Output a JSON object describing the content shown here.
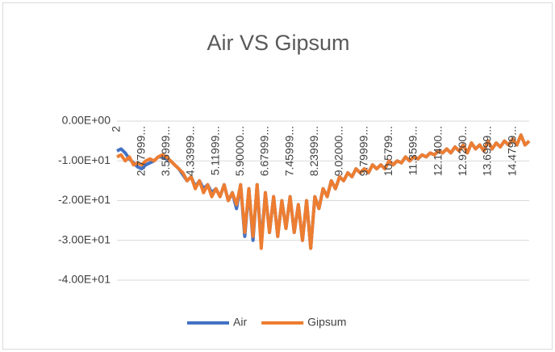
{
  "chart_data": {
    "type": "line",
    "title": "Air VS Gipsum",
    "categories": [
      "2",
      null,
      null,
      null,
      null,
      null,
      "2.77999...",
      null,
      null,
      null,
      null,
      null,
      "3.55999...",
      null,
      null,
      null,
      null,
      null,
      "4.33999...",
      null,
      null,
      null,
      null,
      null,
      "5.11999...",
      null,
      null,
      null,
      null,
      null,
      "5.90000...",
      null,
      null,
      null,
      null,
      null,
      "6.67999...",
      null,
      null,
      null,
      null,
      null,
      "7.45999...",
      null,
      null,
      null,
      null,
      null,
      "8.23999...",
      null,
      null,
      null,
      null,
      null,
      "9.02000...",
      null,
      null,
      null,
      null,
      null,
      "9.79999...",
      null,
      null,
      null,
      null,
      null,
      "10.5799...",
      null,
      null,
      null,
      null,
      null,
      "11.3599...",
      null,
      null,
      null,
      null,
      null,
      "12.1400...",
      null,
      null,
      null,
      null,
      null,
      "12.9200...",
      null,
      null,
      null,
      null,
      null,
      "13.6999...",
      null,
      null,
      null,
      null,
      null,
      "14.4799...",
      null,
      null,
      null,
      null
    ],
    "series": [
      {
        "name": "Air",
        "color": "#4472c4",
        "values": [
          -7.5,
          -7,
          -8,
          -9.5,
          -10.5,
          -11.5,
          -12,
          -11,
          -10.5,
          -10,
          -9,
          -9,
          -9.5,
          -10,
          -11,
          -12,
          -13.5,
          -15,
          -14,
          -16.5,
          -15,
          -17,
          -16,
          -18,
          -17,
          -19,
          -16,
          -20,
          -18,
          -22,
          -16,
          -29,
          -17,
          -30,
          -16,
          -31,
          -18,
          -28,
          -19,
          -29,
          -20,
          -27,
          -19,
          -28,
          -21,
          -30,
          -20,
          -32,
          -19,
          -22,
          -17,
          -19,
          -15,
          -17,
          -14,
          -15,
          -13,
          -14,
          -12,
          -13,
          -12,
          -13,
          -11,
          -12,
          -11,
          -12,
          -10,
          -11,
          -10,
          -10.5,
          -9,
          -10,
          -9,
          -9.5,
          -8.5,
          -9,
          -8,
          -8.5,
          -7.5,
          -8,
          -7,
          -8,
          -6.5,
          -7.5,
          -6,
          -8,
          -5.5,
          -7,
          -6,
          -7.5,
          -5,
          -7,
          -5.5,
          -6.5,
          -5,
          -6,
          -4.5,
          -6,
          -3.5,
          -6,
          -5
        ]
      },
      {
        "name": "Gipsum",
        "color": "#ed7d31",
        "values": [
          -9,
          -8.5,
          -10,
          -9,
          -11,
          -10.5,
          -11,
          -10,
          -9.5,
          -10,
          -9,
          -8.5,
          -9,
          -10,
          -11,
          -12,
          -13,
          -15,
          -14,
          -17,
          -15,
          -18,
          -16,
          -19,
          -17,
          -19,
          -16,
          -20,
          -18,
          -21,
          -16,
          -28,
          -17,
          -29,
          -16,
          -32,
          -18,
          -28,
          -19,
          -29,
          -20,
          -27,
          -19,
          -28,
          -21,
          -30,
          -20,
          -32,
          -19,
          -22,
          -17,
          -19,
          -15,
          -17,
          -14,
          -15,
          -13,
          -14,
          -12,
          -13,
          -12,
          -13,
          -11,
          -12,
          -11,
          -12,
          -10,
          -11,
          -10,
          -10.5,
          -9,
          -10,
          -9,
          -9.5,
          -8.5,
          -9,
          -8,
          -8.5,
          -7.5,
          -8,
          -7,
          -8,
          -6.5,
          -7.5,
          -6,
          -8,
          -5.5,
          -7,
          -6,
          -7.5,
          -5,
          -7,
          -5.5,
          -6.5,
          -5,
          -6,
          -4.5,
          -6,
          -3.5,
          -6,
          -5
        ]
      }
    ],
    "ylim": [
      -40,
      0
    ],
    "yticks": [
      {
        "value": 0,
        "label": "0.00E+00"
      },
      {
        "value": -10,
        "label": "-1.00E+01"
      },
      {
        "value": -20,
        "label": "-2.00E+01"
      },
      {
        "value": -30,
        "label": "-3.00E+01"
      },
      {
        "value": -40,
        "label": "-4.00E+01"
      }
    ],
    "grid": true,
    "legend": "bottom"
  }
}
